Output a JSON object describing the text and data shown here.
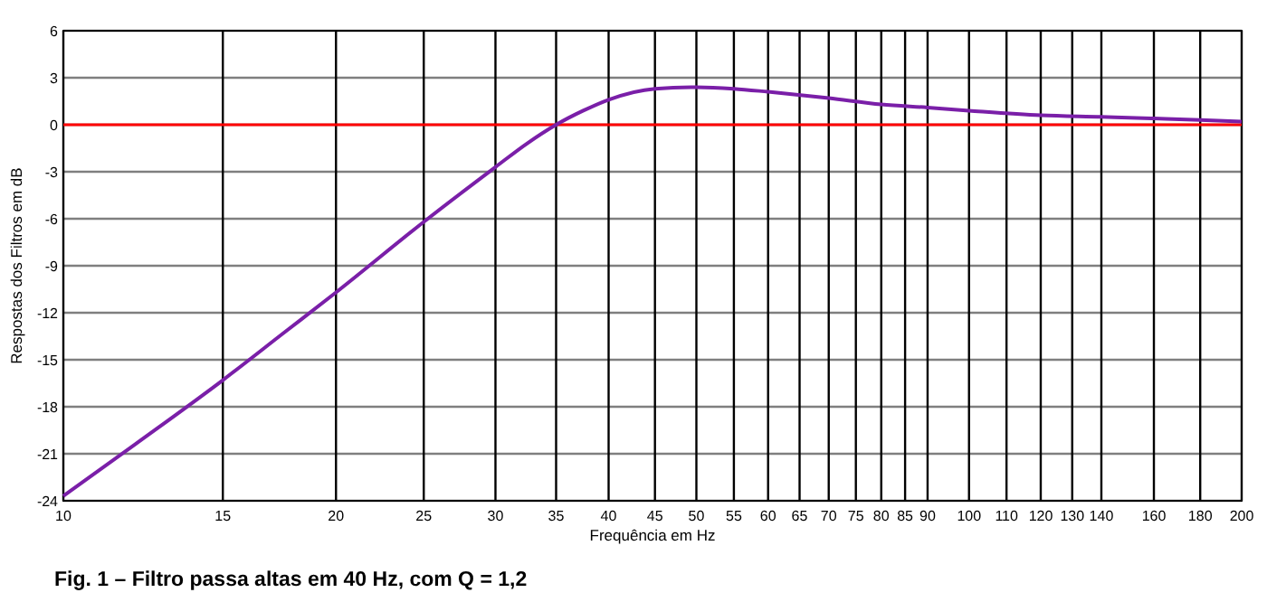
{
  "chart_data": {
    "type": "line",
    "xlabel": "Frequência  em  Hz",
    "ylabel": "Respostas  dos  Filtros  em  dB",
    "annotations": [
      "Fig. 1 – Filtro passa altas em 40 Hz, com Q = 1,2"
    ],
    "log": "x",
    "grid": true,
    "line_style": "solid",
    "marker": "none",
    "xlim": [
      10,
      200
    ],
    "xticks": [
      10,
      15,
      20,
      25,
      30,
      35,
      40,
      45,
      50,
      55,
      60,
      65,
      70,
      75,
      80,
      85,
      90,
      100,
      110,
      120,
      130,
      140,
      160,
      180,
      200
    ],
    "ylim": [
      -24,
      6
    ],
    "yticks": [
      -24,
      -21,
      -18,
      -15,
      -12,
      -9,
      -6,
      -3,
      0,
      3,
      6
    ],
    "ref_lines": [
      {
        "axis": "y",
        "value": 0,
        "color": "#ff0000"
      }
    ],
    "series": [
      {
        "color": "#7a1fa8",
        "x": [
          10,
          12,
          15,
          17.5,
          20,
          25,
          30,
          32.5,
          35,
          37.5,
          40,
          45,
          50,
          55,
          60,
          70,
          80,
          90,
          100,
          120,
          140,
          160,
          180,
          200
        ],
        "values": [
          -23.7,
          -20.4,
          -16.3,
          -13.3,
          -10.7,
          -6.2,
          -2.7,
          -1.2,
          0,
          0.9,
          1.6,
          2.3,
          2.4,
          2.3,
          2.1,
          1.7,
          1.3,
          1.1,
          0.9,
          0.6,
          0.5,
          0.4,
          0.3,
          0.2
        ]
      }
    ]
  }
}
